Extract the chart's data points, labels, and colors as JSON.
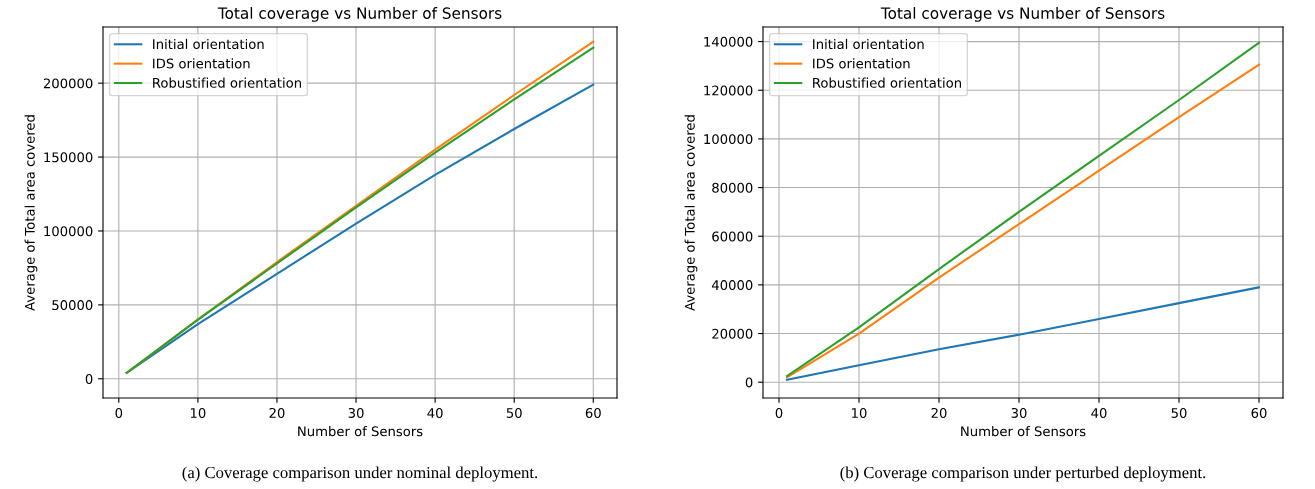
{
  "chart_data": [
    {
      "type": "line",
      "title": "Total coverage vs Number of Sensors",
      "xlabel": "Number of Sensors",
      "ylabel": "Average of Total area covered",
      "x": [
        1,
        10,
        20,
        30,
        40,
        50,
        60
      ],
      "xlim": [
        -2,
        63
      ],
      "xticks": [
        0,
        10,
        20,
        30,
        40,
        50,
        60
      ],
      "ylim": [
        -13000,
        238000
      ],
      "yticks": [
        0,
        50000,
        100000,
        150000,
        200000
      ],
      "grid": true,
      "legend": "top left",
      "annotations": [
        "(a) Coverage comparison under nominal deployment."
      ],
      "series": [
        {
          "name": "Initial orientation",
          "color": "#1f77b4",
          "values": [
            4000,
            37000,
            71000,
            105000,
            138000,
            169000,
            199000
          ]
        },
        {
          "name": "IDS orientation",
          "color": "#ff7f0e",
          "values": [
            4000,
            40000,
            79000,
            117000,
            155000,
            192000,
            228000
          ]
        },
        {
          "name": "Robustified orientation",
          "color": "#2ca02c",
          "values": [
            4000,
            40000,
            78000,
            116000,
            153000,
            189000,
            224000
          ]
        }
      ]
    },
    {
      "type": "line",
      "title": "Total coverage vs Number of Sensors",
      "xlabel": "Number of Sensors",
      "ylabel": "Average of Total area covered",
      "x": [
        1,
        10,
        20,
        30,
        40,
        50,
        60
      ],
      "xlim": [
        -2,
        63
      ],
      "xticks": [
        0,
        10,
        20,
        30,
        40,
        50,
        60
      ],
      "ylim": [
        -6500,
        146000
      ],
      "yticks": [
        0,
        20000,
        40000,
        60000,
        80000,
        100000,
        120000,
        140000
      ],
      "grid": true,
      "legend": "top left",
      "annotations": [
        "(b) Coverage comparison under perturbed deployment."
      ],
      "series": [
        {
          "name": "Initial orientation",
          "color": "#1f77b4",
          "values": [
            1000,
            7000,
            13500,
            19500,
            26000,
            32500,
            39000
          ]
        },
        {
          "name": "IDS orientation",
          "color": "#ff7f0e",
          "values": [
            2000,
            20000,
            43000,
            65000,
            87000,
            109000,
            130500
          ]
        },
        {
          "name": "Robustified orientation",
          "color": "#2ca02c",
          "values": [
            2500,
            22500,
            46500,
            70000,
            93000,
            116000,
            139500
          ]
        }
      ]
    }
  ]
}
